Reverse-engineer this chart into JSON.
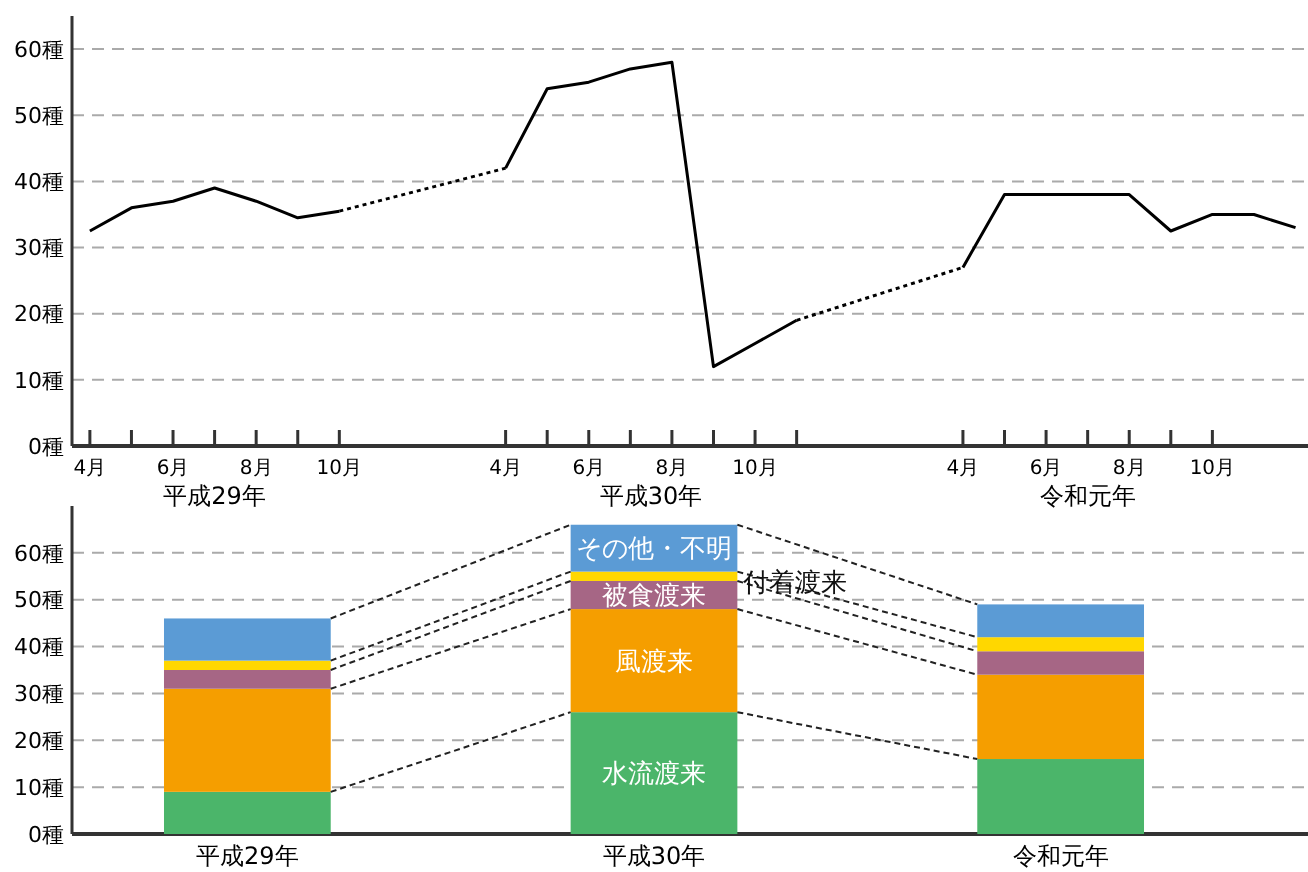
{
  "chart_data": [
    {
      "type": "line",
      "ylim": [
        0,
        65
      ],
      "grid": "y",
      "legend": false,
      "categories": [
        "4月",
        null,
        "6月",
        null,
        "8月",
        null,
        "10月",
        null,
        null,
        null,
        "4月",
        null,
        "6月",
        null,
        "8月",
        null,
        "10月",
        null,
        null,
        null,
        null,
        "4月",
        null,
        "6月",
        null,
        "8月",
        null,
        "10月",
        null,
        null
      ],
      "yticks": [
        {
          "value": 0,
          "label": "0種"
        },
        {
          "value": 10,
          "label": "10種"
        },
        {
          "value": 20,
          "label": "20種"
        },
        {
          "value": 30,
          "label": "30種"
        },
        {
          "value": 40,
          "label": "40種"
        },
        {
          "value": 50,
          "label": "50種"
        },
        {
          "value": 60,
          "label": "60種"
        }
      ],
      "annotations": [
        "平成29年",
        "平成30年",
        "令和元年"
      ],
      "series": [
        {
          "color": "#000000",
          "line_style": "solid",
          "values": [
            32.5,
            36,
            37,
            39,
            37,
            34.5,
            35.5,
            null,
            null,
            null,
            42,
            54,
            55,
            57,
            58,
            12,
            15.5,
            19,
            null,
            null,
            null,
            27,
            38,
            38,
            38,
            38,
            32.5,
            35,
            35,
            33
          ]
        }
      ]
    },
    {
      "type": "bar",
      "stacked": true,
      "ylim": [
        0,
        70
      ],
      "grid": "y",
      "legend": false,
      "categories": [
        "平成29年",
        "平成30年",
        "令和元年"
      ],
      "yticks": [
        {
          "value": 0,
          "label": "0種"
        },
        {
          "value": 10,
          "label": "10種"
        },
        {
          "value": 20,
          "label": "20種"
        },
        {
          "value": 30,
          "label": "30種"
        },
        {
          "value": 40,
          "label": "40種"
        },
        {
          "value": 50,
          "label": "50種"
        },
        {
          "value": 60,
          "label": "60種"
        }
      ],
      "series": [
        {
          "name": "水流渡来",
          "color": "#4bb56a",
          "values": [
            9,
            26,
            16
          ]
        },
        {
          "name": "風渡来",
          "color": "#f59e00",
          "values": [
            22,
            22,
            18
          ]
        },
        {
          "name": "被食渡来",
          "color": "#a66685",
          "values": [
            4,
            6,
            5
          ]
        },
        {
          "name": "付着渡来",
          "color": "#ffd700",
          "values": [
            2,
            2,
            3
          ]
        },
        {
          "name": "その他・不明",
          "color": "#5b9bd5",
          "values": [
            9,
            10,
            7
          ]
        }
      ]
    }
  ]
}
